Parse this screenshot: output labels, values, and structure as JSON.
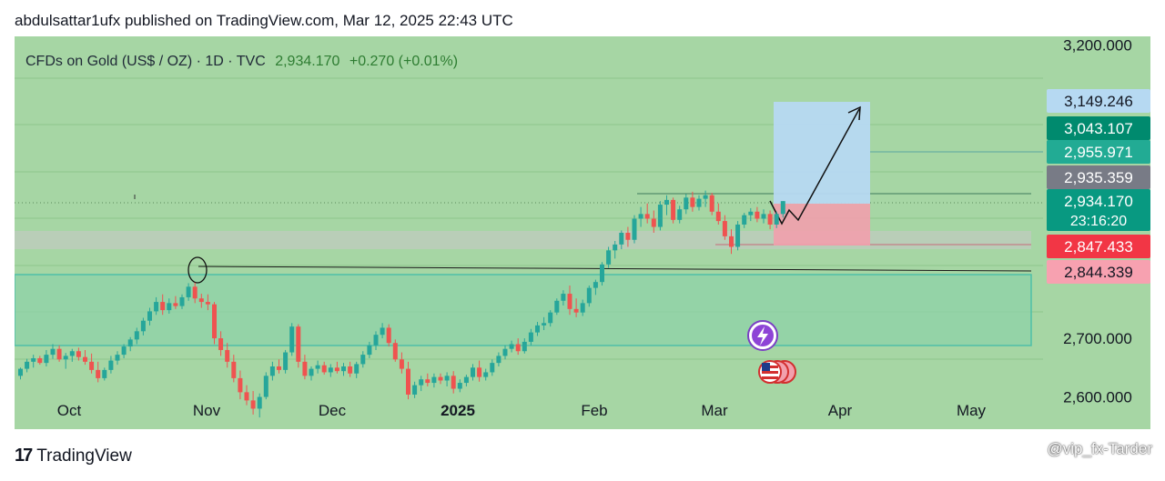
{
  "header": {
    "publish_text": "abdulsattar1ufx published on TradingView.com, Mar 12, 2025 22:43 UTC"
  },
  "symbol": {
    "name": "CFDs on Gold (US$ / OZ) · 1D · TVC",
    "price": "2,934.170",
    "change": "+0.270 (+0.01%)"
  },
  "footer": {
    "brand": "TradingView",
    "watermark": "@vip_fx-Tarder"
  },
  "colors": {
    "background": "#a6d6a4",
    "up": "#26a69a",
    "down": "#ef5350",
    "target_zone": "#b6d9f2",
    "stop_zone": "#f2a0ad",
    "grey_zone": "#bdbdbd"
  },
  "chart_data": {
    "type": "candlestick",
    "timeframe": "1D",
    "y_range": [
      2545,
      3215
    ],
    "y_ticks": [
      {
        "value": 3200,
        "label": "3,200.000"
      },
      {
        "value": 2700,
        "label": "2,700.000"
      },
      {
        "value": 2600,
        "label": "2,600.000"
      }
    ],
    "x_ticks": [
      {
        "x": 0,
        "label": "Oct",
        "bold": false
      },
      {
        "x": 1,
        "label": "Nov",
        "bold": false
      },
      {
        "x": 2,
        "label": "Dec",
        "bold": false
      },
      {
        "x": 3,
        "label": "2025",
        "bold": true
      },
      {
        "x": 4,
        "label": "Feb",
        "bold": false
      },
      {
        "x": 5,
        "label": "Mar",
        "bold": false
      },
      {
        "x": 6,
        "label": "Apr",
        "bold": false
      },
      {
        "x": 7,
        "label": "May",
        "bold": false
      }
    ],
    "price_labels": [
      {
        "value": 3149.246,
        "label": "3,149.246",
        "kind": "target"
      },
      {
        "value": 3043.107,
        "label": "3,043.107",
        "kind": "dark-teal"
      },
      {
        "value": 2955.971,
        "label": "2,955.971",
        "kind": "teal"
      },
      {
        "value": 2935.359,
        "label": "2,935.359",
        "kind": "grey"
      },
      {
        "value": 2934.17,
        "label": "2,934.170",
        "kind": "last",
        "sub": "23:16:20"
      },
      {
        "value": 2847.433,
        "label": "2,847.433",
        "kind": "red"
      },
      {
        "value": 2844.339,
        "label": "2,844.339",
        "kind": "pink"
      }
    ],
    "candles": [
      [
        2636,
        2650,
        2630,
        2648
      ],
      [
        2648,
        2665,
        2642,
        2660
      ],
      [
        2660,
        2672,
        2650,
        2666
      ],
      [
        2666,
        2670,
        2655,
        2658
      ],
      [
        2658,
        2680,
        2652,
        2672
      ],
      [
        2672,
        2690,
        2665,
        2682
      ],
      [
        2682,
        2688,
        2660,
        2664
      ],
      [
        2664,
        2675,
        2648,
        2670
      ],
      [
        2670,
        2682,
        2660,
        2678
      ],
      [
        2678,
        2684,
        2662,
        2668
      ],
      [
        2668,
        2680,
        2655,
        2660
      ],
      [
        2660,
        2674,
        2640,
        2646
      ],
      [
        2646,
        2660,
        2625,
        2632
      ],
      [
        2632,
        2650,
        2628,
        2646
      ],
      [
        2646,
        2670,
        2640,
        2662
      ],
      [
        2662,
        2678,
        2655,
        2672
      ],
      [
        2672,
        2690,
        2666,
        2686
      ],
      [
        2686,
        2702,
        2678,
        2698
      ],
      [
        2698,
        2718,
        2690,
        2712
      ],
      [
        2712,
        2735,
        2705,
        2730
      ],
      [
        2730,
        2752,
        2722,
        2746
      ],
      [
        2746,
        2770,
        2740,
        2762
      ],
      [
        2762,
        2775,
        2740,
        2748
      ],
      [
        2748,
        2768,
        2742,
        2760
      ],
      [
        2760,
        2772,
        2750,
        2755
      ],
      [
        2755,
        2775,
        2750,
        2770
      ],
      [
        2770,
        2794,
        2764,
        2788
      ],
      [
        2788,
        2795,
        2760,
        2768
      ],
      [
        2768,
        2776,
        2752,
        2762
      ],
      [
        2762,
        2775,
        2748,
        2758
      ],
      [
        2758,
        2762,
        2690,
        2700
      ],
      [
        2700,
        2712,
        2670,
        2680
      ],
      [
        2680,
        2692,
        2650,
        2660
      ],
      [
        2660,
        2672,
        2625,
        2632
      ],
      [
        2632,
        2645,
        2596,
        2608
      ],
      [
        2608,
        2620,
        2586,
        2594
      ],
      [
        2594,
        2610,
        2570,
        2580
      ],
      [
        2580,
        2606,
        2565,
        2600
      ],
      [
        2600,
        2642,
        2596,
        2636
      ],
      [
        2636,
        2660,
        2628,
        2652
      ],
      [
        2652,
        2664,
        2640,
        2646
      ],
      [
        2646,
        2680,
        2640,
        2676
      ],
      [
        2676,
        2726,
        2670,
        2720
      ],
      [
        2720,
        2724,
        2650,
        2660
      ],
      [
        2660,
        2672,
        2630,
        2636
      ],
      [
        2636,
        2652,
        2628,
        2648
      ],
      [
        2648,
        2662,
        2640,
        2654
      ],
      [
        2654,
        2660,
        2638,
        2642
      ],
      [
        2642,
        2656,
        2634,
        2650
      ],
      [
        2650,
        2660,
        2640,
        2644
      ],
      [
        2644,
        2658,
        2636,
        2652
      ],
      [
        2652,
        2660,
        2634,
        2640
      ],
      [
        2640,
        2660,
        2632,
        2656
      ],
      [
        2656,
        2678,
        2650,
        2672
      ],
      [
        2672,
        2694,
        2666,
        2688
      ],
      [
        2688,
        2712,
        2680,
        2706
      ],
      [
        2706,
        2726,
        2700,
        2718
      ],
      [
        2718,
        2724,
        2686,
        2692
      ],
      [
        2692,
        2698,
        2660,
        2664
      ],
      [
        2664,
        2676,
        2640,
        2648
      ],
      [
        2648,
        2660,
        2596,
        2604
      ],
      [
        2604,
        2626,
        2598,
        2620
      ],
      [
        2620,
        2636,
        2610,
        2630
      ],
      [
        2630,
        2640,
        2618,
        2624
      ],
      [
        2624,
        2640,
        2616,
        2634
      ],
      [
        2634,
        2640,
        2622,
        2628
      ],
      [
        2628,
        2642,
        2618,
        2636
      ],
      [
        2636,
        2644,
        2606,
        2614
      ],
      [
        2614,
        2630,
        2608,
        2624
      ],
      [
        2624,
        2638,
        2618,
        2634
      ],
      [
        2634,
        2656,
        2628,
        2650
      ],
      [
        2650,
        2662,
        2626,
        2634
      ],
      [
        2634,
        2648,
        2628,
        2642
      ],
      [
        2642,
        2664,
        2636,
        2658
      ],
      [
        2658,
        2676,
        2652,
        2670
      ],
      [
        2670,
        2688,
        2664,
        2682
      ],
      [
        2682,
        2696,
        2676,
        2690
      ],
      [
        2690,
        2700,
        2672,
        2678
      ],
      [
        2678,
        2700,
        2674,
        2694
      ],
      [
        2694,
        2716,
        2688,
        2710
      ],
      [
        2710,
        2728,
        2704,
        2722
      ],
      [
        2722,
        2736,
        2714,
        2726
      ],
      [
        2726,
        2748,
        2720,
        2744
      ],
      [
        2744,
        2768,
        2740,
        2764
      ],
      [
        2764,
        2782,
        2756,
        2776
      ],
      [
        2776,
        2790,
        2740,
        2750
      ],
      [
        2750,
        2768,
        2736,
        2744
      ],
      [
        2744,
        2766,
        2738,
        2760
      ],
      [
        2760,
        2790,
        2754,
        2786
      ],
      [
        2786,
        2800,
        2774,
        2796
      ],
      [
        2796,
        2830,
        2790,
        2826
      ],
      [
        2826,
        2856,
        2820,
        2850
      ],
      [
        2850,
        2866,
        2836,
        2860
      ],
      [
        2860,
        2884,
        2852,
        2880
      ],
      [
        2880,
        2890,
        2856,
        2868
      ],
      [
        2868,
        2910,
        2862,
        2904
      ],
      [
        2904,
        2924,
        2890,
        2912
      ],
      [
        2912,
        2930,
        2896,
        2904
      ],
      [
        2904,
        2918,
        2880,
        2890
      ],
      [
        2890,
        2934,
        2884,
        2928
      ],
      [
        2928,
        2944,
        2910,
        2936
      ],
      [
        2936,
        2940,
        2896,
        2902
      ],
      [
        2902,
        2926,
        2896,
        2920
      ],
      [
        2920,
        2946,
        2912,
        2940
      ],
      [
        2940,
        2950,
        2916,
        2924
      ],
      [
        2924,
        2944,
        2918,
        2938
      ],
      [
        2938,
        2952,
        2924,
        2944
      ],
      [
        2944,
        2948,
        2910,
        2916
      ],
      [
        2916,
        2930,
        2894,
        2900
      ],
      [
        2900,
        2910,
        2868,
        2874
      ],
      [
        2874,
        2886,
        2844,
        2856
      ],
      [
        2856,
        2900,
        2850,
        2894
      ],
      [
        2894,
        2914,
        2888,
        2910
      ],
      [
        2910,
        2922,
        2900,
        2916
      ],
      [
        2916,
        2924,
        2898,
        2904
      ],
      [
        2904,
        2920,
        2896,
        2912
      ],
      [
        2912,
        2918,
        2886,
        2894
      ],
      [
        2894,
        2916,
        2888,
        2912
      ],
      [
        2912,
        2934,
        2906,
        2934
      ]
    ]
  }
}
